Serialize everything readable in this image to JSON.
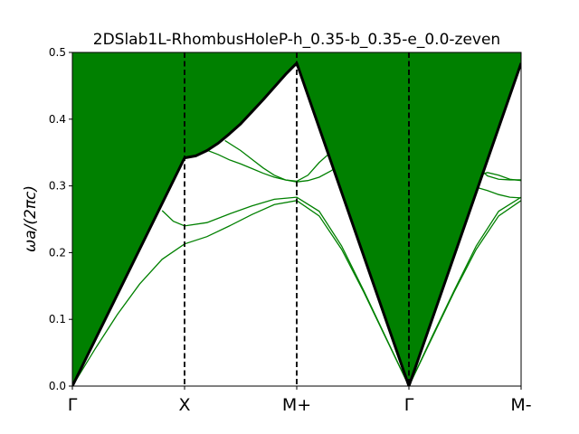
{
  "chart_data": {
    "type": "line",
    "title": "2DSlab1L-RhombusHoleP-h_0.35-b_0.35-e_0.0-zeven",
    "xlabel": "",
    "ylabel": "ωa/(2πc)",
    "ylim": [
      0.0,
      0.5
    ],
    "xlim": [
      0,
      4
    ],
    "yticks": [
      "0.0",
      "0.1",
      "0.2",
      "0.3",
      "0.4",
      "0.5"
    ],
    "yticks_values": [
      0.0,
      0.1,
      0.2,
      0.3,
      0.4,
      0.5
    ],
    "xticks": [
      "Γ",
      "X",
      "M+",
      "Γ",
      "M-"
    ],
    "xticks_values": [
      0,
      1,
      2,
      3,
      4
    ],
    "vlines": [
      1,
      2,
      3
    ],
    "colors": {
      "fill": "#008000",
      "band": "#008000",
      "light_line": "#000000",
      "vline": "#000000"
    },
    "light_line": {
      "x": [
        0,
        1,
        1.1,
        1.2,
        1.3,
        1.4,
        1.5,
        1.6,
        1.7,
        1.8,
        1.9,
        2,
        3,
        4
      ],
      "y": [
        0,
        0.342,
        0.345,
        0.353,
        0.364,
        0.378,
        0.393,
        0.411,
        0.429,
        0.448,
        0.467,
        0.484,
        0,
        0.484
      ]
    },
    "series": [
      {
        "x": [
          0,
          0.2,
          0.4,
          0.6,
          0.8,
          1,
          1.2,
          1.4,
          1.6,
          1.8,
          2,
          2.2,
          2.4,
          2.6,
          2.8,
          3,
          3.2,
          3.4,
          3.6,
          3.8,
          4
        ],
        "values": [
          0,
          0.055,
          0.107,
          0.153,
          0.19,
          0.213,
          0.224,
          0.24,
          0.257,
          0.272,
          0.278,
          0.255,
          0.205,
          0.14,
          0.07,
          0,
          0.07,
          0.14,
          0.205,
          0.255,
          0.278
        ]
      },
      {
        "x": [
          0.8,
          0.9,
          1,
          1.2,
          1.4,
          1.6,
          1.8,
          2,
          2.2,
          2.4,
          2.6,
          2.8,
          3,
          3.2,
          3.4,
          3.6,
          3.8,
          4
        ],
        "values": [
          0.263,
          0.247,
          0.24,
          0.245,
          0.258,
          0.27,
          0.28,
          0.283,
          0.262,
          0.21,
          0.142,
          0.071,
          0,
          0.072,
          0.142,
          0.21,
          0.262,
          0.283
        ]
      },
      {
        "x": [
          1.36,
          1.5,
          1.6,
          1.7,
          1.8,
          1.9,
          2,
          2.1,
          2.2,
          2.3,
          2.4
        ],
        "values": [
          0.368,
          0.353,
          0.34,
          0.327,
          0.316,
          0.309,
          0.306,
          0.308,
          0.313,
          0.322,
          0.333
        ]
      },
      {
        "x": [
          1.16,
          1.3,
          1.4,
          1.5,
          1.6,
          1.7,
          1.8,
          1.9,
          2,
          2.1,
          2.2,
          2.3
        ],
        "values": [
          0.356,
          0.347,
          0.339,
          0.333,
          0.326,
          0.319,
          0.313,
          0.309,
          0.307,
          0.316,
          0.335,
          0.35
        ]
      },
      {
        "x": [
          3.55,
          3.6,
          3.7,
          3.8,
          3.9,
          4
        ],
        "values": [
          0.34,
          0.33,
          0.315,
          0.31,
          0.309,
          0.309
        ]
      },
      {
        "x": [
          3.62,
          3.7,
          3.8,
          3.9,
          4
        ],
        "values": [
          0.316,
          0.32,
          0.316,
          0.31,
          0.308
        ]
      },
      {
        "x": [
          3.55,
          3.6,
          3.7,
          3.8,
          3.9,
          4
        ],
        "values": [
          0.3,
          0.298,
          0.293,
          0.287,
          0.283,
          0.282
        ]
      }
    ]
  }
}
